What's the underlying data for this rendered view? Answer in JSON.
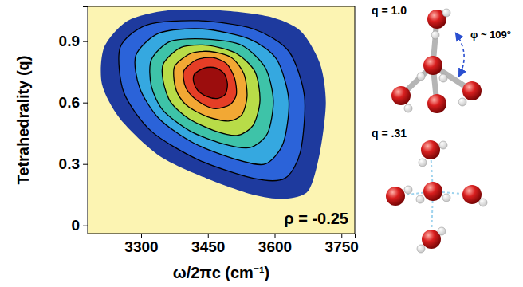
{
  "chart_data": {
    "type": "contour",
    "x_label": "ω/2πc (cm⁻¹)",
    "y_label": "Tetrahedrality (q)",
    "xlim": [
      3180,
      3780
    ],
    "ylim": [
      -0.04,
      1.07
    ],
    "xticks": [
      3300,
      3450,
      3600,
      3750
    ],
    "yticks": [
      0,
      0.3,
      0.6,
      0.9
    ],
    "annotations": [
      "ρ = -0.25"
    ],
    "contours": [
      {
        "color": "#1e3a9e",
        "x": [
          3217,
          3270,
          3358,
          3482,
          3588,
          3658,
          3702,
          3715,
          3702,
          3676,
          3623,
          3552,
          3447,
          3341,
          3253,
          3212
        ],
        "y": [
          0.87,
          1.0,
          1.05,
          1.05,
          1.02,
          0.95,
          0.79,
          0.6,
          0.36,
          0.17,
          0.13,
          0.15,
          0.23,
          0.34,
          0.52,
          0.69
        ]
      },
      {
        "color": "#2b63d9",
        "x": [
          3253,
          3314,
          3429,
          3552,
          3632,
          3667,
          3658,
          3623,
          3552,
          3429,
          3323,
          3261
        ],
        "y": [
          0.87,
          0.98,
          1.0,
          0.96,
          0.85,
          0.63,
          0.36,
          0.23,
          0.23,
          0.32,
          0.46,
          0.65
        ]
      },
      {
        "color": "#35a8e0",
        "x": [
          3288,
          3341,
          3438,
          3544,
          3605,
          3632,
          3619,
          3579,
          3517,
          3420,
          3341,
          3297
        ],
        "y": [
          0.83,
          0.94,
          0.96,
          0.91,
          0.81,
          0.61,
          0.4,
          0.3,
          0.32,
          0.4,
          0.52,
          0.67
        ]
      },
      {
        "color": "#3ec3a8",
        "x": [
          3323,
          3367,
          3447,
          3526,
          3579,
          3597,
          3584,
          3544,
          3482,
          3411,
          3350,
          3323
        ],
        "y": [
          0.81,
          0.9,
          0.91,
          0.88,
          0.77,
          0.61,
          0.45,
          0.38,
          0.4,
          0.46,
          0.56,
          0.68
        ]
      },
      {
        "color": "#b8dc48",
        "x": [
          3350,
          3390,
          3450,
          3514,
          3556,
          3567,
          3552,
          3517,
          3468,
          3408,
          3367,
          3350
        ],
        "y": [
          0.79,
          0.87,
          0.88,
          0.84,
          0.75,
          0.61,
          0.49,
          0.44,
          0.46,
          0.52,
          0.6,
          0.7
        ]
      },
      {
        "color": "#f2a834",
        "x": [
          3376,
          3411,
          3455,
          3503,
          3531,
          3538,
          3526,
          3496,
          3450,
          3406,
          3383,
          3374
        ],
        "y": [
          0.78,
          0.84,
          0.85,
          0.82,
          0.74,
          0.63,
          0.54,
          0.51,
          0.53,
          0.58,
          0.64,
          0.71
        ]
      },
      {
        "color": "#e53e26",
        "x": [
          3397,
          3425,
          3461,
          3492,
          3510,
          3514,
          3500,
          3468,
          3440,
          3415,
          3401,
          3395
        ],
        "y": [
          0.76,
          0.81,
          0.82,
          0.79,
          0.72,
          0.64,
          0.59,
          0.57,
          0.59,
          0.63,
          0.67,
          0.72
        ]
      },
      {
        "color": "#9c0d0d",
        "x": [
          3420,
          3443,
          3468,
          3487,
          3494,
          3489,
          3471,
          3447,
          3427,
          3418
        ],
        "y": [
          0.74,
          0.77,
          0.77,
          0.74,
          0.69,
          0.64,
          0.62,
          0.63,
          0.66,
          0.7
        ]
      }
    ]
  },
  "diagrams": [
    {
      "label": "q = 1.0",
      "angle_label": "φ ~ 109°"
    },
    {
      "label": "q = .31"
    }
  ]
}
